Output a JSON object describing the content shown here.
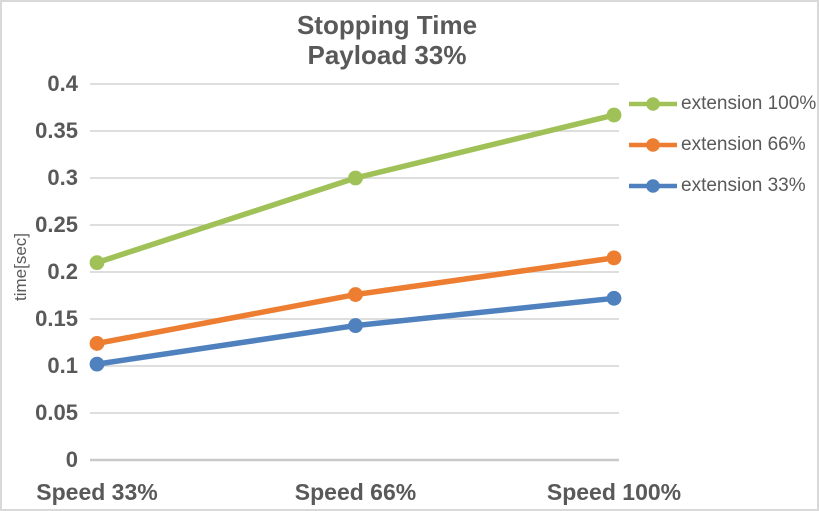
{
  "chart_data": {
    "type": "line",
    "title": "Stopping Time",
    "subtitle": "Payload 33%",
    "ylabel": "time[sec]",
    "xlabel": "",
    "categories": [
      "Speed 33%",
      "Speed 66%",
      "Speed 100%"
    ],
    "series": [
      {
        "name": "extension 100%",
        "color": "#a0c158",
        "values": [
          0.21,
          0.3,
          0.367
        ]
      },
      {
        "name": "extension 66%",
        "color": "#ed7d31",
        "values": [
          0.124,
          0.176,
          0.215
        ]
      },
      {
        "name": "extension 33%",
        "color": "#4e81bd",
        "values": [
          0.102,
          0.143,
          0.172
        ]
      }
    ],
    "ylim": [
      0,
      0.4
    ],
    "yticks": [
      0,
      0.05,
      0.1,
      0.15,
      0.2,
      0.25,
      0.3,
      0.35,
      0.4
    ],
    "ytick_labels": [
      "0",
      "0.05",
      "0.1",
      "0.15",
      "0.2",
      "0.25",
      "0.3",
      "0.35",
      "0.4"
    ],
    "grid": true,
    "legend_position": "right",
    "marker": "circle"
  },
  "colors": {
    "background": "#ffffff",
    "frame_border": "#d9d9d9",
    "gridline": "#d9d9d9",
    "zero_axis_line": "#c9c9c9",
    "text": "#595959"
  }
}
